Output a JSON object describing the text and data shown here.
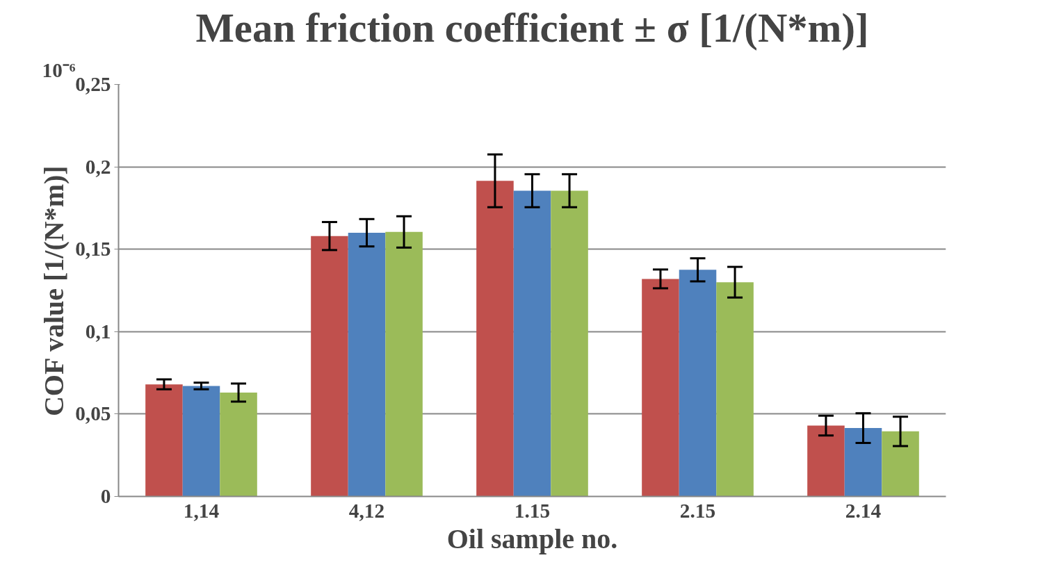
{
  "chart_data": {
    "type": "bar",
    "title": "Mean friction coefficient ± σ [1/(N*m)]",
    "xlabel": "Oil sample no.",
    "ylabel": "COF value [1/(N*m)]",
    "annotations": [
      "10⁻⁶"
    ],
    "categories": [
      "1,14",
      "4,12",
      "1.15",
      "2.15",
      "2.14"
    ],
    "series": [
      {
        "color": "#c0504d",
        "values": [
          0.068,
          0.158,
          0.1915,
          0.132,
          0.043
        ],
        "errors": [
          0.003,
          0.0085,
          0.016,
          0.0057,
          0.006
        ]
      },
      {
        "color": "#4f81bd",
        "values": [
          0.067,
          0.16,
          0.1855,
          0.1375,
          0.0415
        ],
        "errors": [
          0.002,
          0.0083,
          0.01,
          0.007,
          0.009
        ]
      },
      {
        "color": "#9bbb59",
        "values": [
          0.063,
          0.1605,
          0.1855,
          0.13,
          0.0395
        ],
        "errors": [
          0.0055,
          0.0095,
          0.01,
          0.0093,
          0.0089
        ]
      }
    ],
    "ylim": [
      0,
      0.25
    ],
    "yticks": [
      {
        "value": 0,
        "label": "0"
      },
      {
        "value": 0.05,
        "label": "0,05"
      },
      {
        "value": 0.1,
        "label": "0,1"
      },
      {
        "value": 0.15,
        "label": "0,15"
      },
      {
        "value": 0.2,
        "label": "0,2"
      },
      {
        "value": 0.25,
        "label": "0,25"
      }
    ],
    "grid": "y"
  }
}
